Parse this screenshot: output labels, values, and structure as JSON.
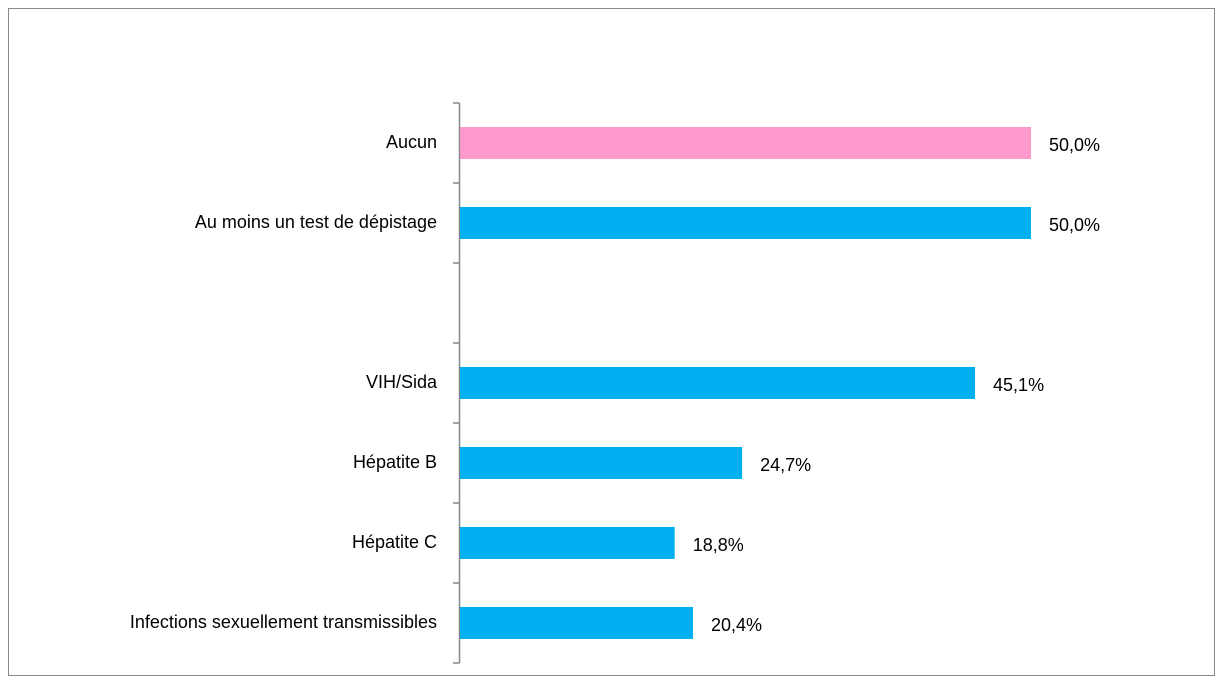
{
  "chart_data": {
    "type": "bar",
    "orientation": "horizontal",
    "categories": [
      "Aucun",
      "Au moins un test de dépistage",
      null,
      "VIH/Sida",
      "Hépatite B",
      "Hépatite C",
      "Infections sexuellement transmissibles"
    ],
    "values": [
      50,
      50,
      null,
      45.1,
      24.7,
      18.8,
      20.4
    ],
    "value_labels": [
      "50,0%",
      "50,0%",
      null,
      "45,1%",
      "24,7%",
      "18,8%",
      "20,4%"
    ],
    "colors": [
      "#ff99cc",
      "#00b0f0",
      null,
      "#00b0f0",
      "#00b0f0",
      "#00b0f0",
      "#00b0f0"
    ]
  }
}
